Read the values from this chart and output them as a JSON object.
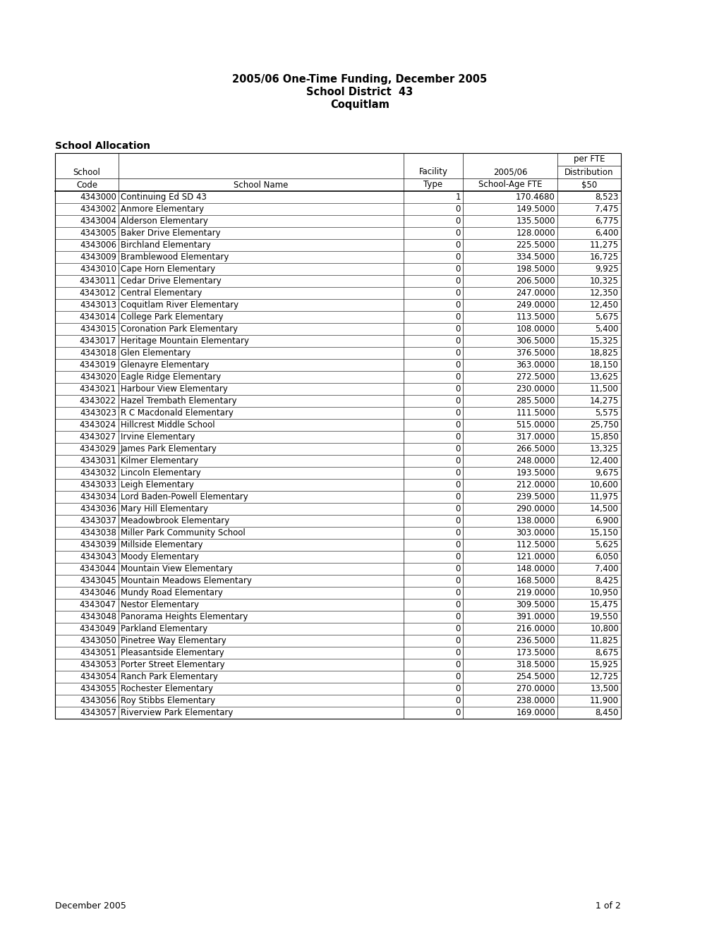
{
  "title_line1": "2005/06 One-Time Funding, December 2005",
  "title_line2": "School District  43",
  "title_line3": "Coquitlam",
  "section_title": "School Allocation",
  "footer_left": "December 2005",
  "footer_right": "1 of 2",
  "rows": [
    [
      "4343000",
      "Continuing Ed SD 43",
      "1",
      "170.4680",
      "8,523"
    ],
    [
      "4343002",
      "Anmore Elementary",
      "0",
      "149.5000",
      "7,475"
    ],
    [
      "4343004",
      "Alderson Elementary",
      "0",
      "135.5000",
      "6,775"
    ],
    [
      "4343005",
      "Baker Drive Elementary",
      "0",
      "128.0000",
      "6,400"
    ],
    [
      "4343006",
      "Birchland Elementary",
      "0",
      "225.5000",
      "11,275"
    ],
    [
      "4343009",
      "Bramblewood Elementary",
      "0",
      "334.5000",
      "16,725"
    ],
    [
      "4343010",
      "Cape Horn Elementary",
      "0",
      "198.5000",
      "9,925"
    ],
    [
      "4343011",
      "Cedar Drive Elementary",
      "0",
      "206.5000",
      "10,325"
    ],
    [
      "4343012",
      "Central Elementary",
      "0",
      "247.0000",
      "12,350"
    ],
    [
      "4343013",
      "Coquitlam River Elementary",
      "0",
      "249.0000",
      "12,450"
    ],
    [
      "4343014",
      "College Park Elementary",
      "0",
      "113.5000",
      "5,675"
    ],
    [
      "4343015",
      "Coronation Park Elementary",
      "0",
      "108.0000",
      "5,400"
    ],
    [
      "4343017",
      "Heritage Mountain Elementary",
      "0",
      "306.5000",
      "15,325"
    ],
    [
      "4343018",
      "Glen Elementary",
      "0",
      "376.5000",
      "18,825"
    ],
    [
      "4343019",
      "Glenayre Elementary",
      "0",
      "363.0000",
      "18,150"
    ],
    [
      "4343020",
      "Eagle Ridge Elementary",
      "0",
      "272.5000",
      "13,625"
    ],
    [
      "4343021",
      "Harbour View Elementary",
      "0",
      "230.0000",
      "11,500"
    ],
    [
      "4343022",
      "Hazel Trembath Elementary",
      "0",
      "285.5000",
      "14,275"
    ],
    [
      "4343023",
      "R C Macdonald Elementary",
      "0",
      "111.5000",
      "5,575"
    ],
    [
      "4343024",
      "Hillcrest Middle School",
      "0",
      "515.0000",
      "25,750"
    ],
    [
      "4343027",
      "Irvine Elementary",
      "0",
      "317.0000",
      "15,850"
    ],
    [
      "4343029",
      "James Park Elementary",
      "0",
      "266.5000",
      "13,325"
    ],
    [
      "4343031",
      "Kilmer Elementary",
      "0",
      "248.0000",
      "12,400"
    ],
    [
      "4343032",
      "Lincoln Elementary",
      "0",
      "193.5000",
      "9,675"
    ],
    [
      "4343033",
      "Leigh Elementary",
      "0",
      "212.0000",
      "10,600"
    ],
    [
      "4343034",
      "Lord Baden-Powell Elementary",
      "0",
      "239.5000",
      "11,975"
    ],
    [
      "4343036",
      "Mary Hill Elementary",
      "0",
      "290.0000",
      "14,500"
    ],
    [
      "4343037",
      "Meadowbrook Elementary",
      "0",
      "138.0000",
      "6,900"
    ],
    [
      "4343038",
      "Miller Park Community School",
      "0",
      "303.0000",
      "15,150"
    ],
    [
      "4343039",
      "Millside Elementary",
      "0",
      "112.5000",
      "5,625"
    ],
    [
      "4343043",
      "Moody Elementary",
      "0",
      "121.0000",
      "6,050"
    ],
    [
      "4343044",
      "Mountain View Elementary",
      "0",
      "148.0000",
      "7,400"
    ],
    [
      "4343045",
      "Mountain Meadows Elementary",
      "0",
      "168.5000",
      "8,425"
    ],
    [
      "4343046",
      "Mundy Road Elementary",
      "0",
      "219.0000",
      "10,950"
    ],
    [
      "4343047",
      "Nestor Elementary",
      "0",
      "309.5000",
      "15,475"
    ],
    [
      "4343048",
      "Panorama Heights Elementary",
      "0",
      "391.0000",
      "19,550"
    ],
    [
      "4343049",
      "Parkland Elementary",
      "0",
      "216.0000",
      "10,800"
    ],
    [
      "4343050",
      "Pinetree Way Elementary",
      "0",
      "236.5000",
      "11,825"
    ],
    [
      "4343051",
      "Pleasantside Elementary",
      "0",
      "173.5000",
      "8,675"
    ],
    [
      "4343053",
      "Porter Street Elementary",
      "0",
      "318.5000",
      "15,925"
    ],
    [
      "4343054",
      "Ranch Park Elementary",
      "0",
      "254.5000",
      "12,725"
    ],
    [
      "4343055",
      "Rochester Elementary",
      "0",
      "270.0000",
      "13,500"
    ],
    [
      "4343056",
      "Roy Stibbs Elementary",
      "0",
      "238.0000",
      "11,900"
    ],
    [
      "4343057",
      "Riverview Park Elementary",
      "0",
      "169.0000",
      "8,450"
    ]
  ],
  "background_color": "#ffffff",
  "title_fontsize": 10.5,
  "table_fontsize": 8.5,
  "header_fontsize": 8.5
}
